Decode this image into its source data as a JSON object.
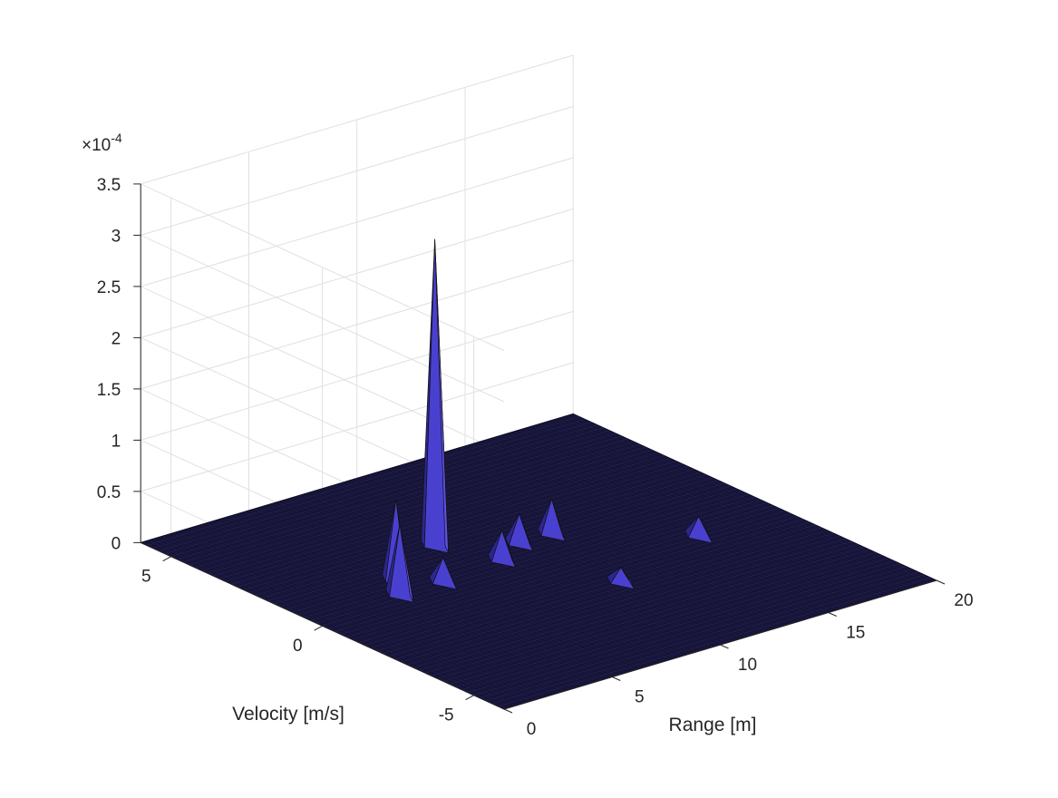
{
  "chart_data": {
    "type": "surface",
    "title": "",
    "xlabel": "Range [m]",
    "ylabel": "Velocity [m/s]",
    "zlabel": "",
    "x_ticks": [
      0,
      5,
      10,
      15,
      20
    ],
    "y_ticks": [
      5,
      0,
      -5
    ],
    "z_ticks": [
      0,
      0.5,
      1,
      1.5,
      2,
      2.5,
      3,
      3.5
    ],
    "z_tick_labels": [
      "0",
      "0.5",
      "1",
      "1.5",
      "2",
      "2.5",
      "3",
      "3.5"
    ],
    "z_multiplier": "×10",
    "z_multiplier_exponent": "-4",
    "xlim": [
      0,
      20
    ],
    "ylim": [
      -6,
      6
    ],
    "zlim": [
      0,
      3.5
    ],
    "grid": true,
    "colors": {
      "surface": "#18163a",
      "peak": "#4a40d0",
      "peak_dark": "#2c2690",
      "grid": "#e0e0e0",
      "axis": "#262626"
    },
    "peaks": [
      {
        "range": 8.0,
        "velocity": 2.0,
        "value": 3.0
      },
      {
        "range": 4.8,
        "velocity": 1.0,
        "value": 0.8
      },
      {
        "range": 4.0,
        "velocity": 0.3,
        "value": 0.7
      },
      {
        "range": 9.0,
        "velocity": 0.5,
        "value": 0.3
      },
      {
        "range": 10.5,
        "velocity": 1.0,
        "value": 0.3
      },
      {
        "range": 12.0,
        "velocity": 1.0,
        "value": 0.35
      },
      {
        "range": 6.0,
        "velocity": 0.3,
        "value": 0.25
      },
      {
        "range": 16.0,
        "velocity": -1.0,
        "value": 0.2
      },
      {
        "range": 11.0,
        "velocity": -2.0,
        "value": 0.15
      }
    ]
  }
}
